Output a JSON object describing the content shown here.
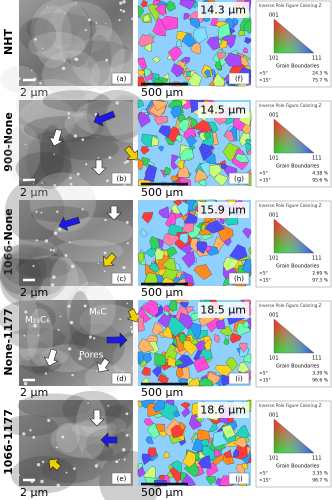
{
  "legend": {
    "title": "Inverse Pole Figure Coloring Z",
    "poles": [
      "001",
      "101",
      "111"
    ],
    "gb_title": "Grain Boundaries",
    "gb_labels": [
      ">5°",
      ">15°"
    ]
  },
  "annotations": {
    "m23c6": "M₂₃C₆",
    "m6c": "M₆C",
    "pores": "Pores"
  },
  "rows": [
    {
      "label": "NHT",
      "sem_scale": "2 μm",
      "sem_panel": "(a)",
      "grain_size": "14.3 μm",
      "ebsd_scale": "500 μm",
      "ebsd_panel": "(f)",
      "gb_values": [
        "24.3 %",
        "75.7 %"
      ]
    },
    {
      "label": "900-None",
      "sem_scale": "2 μm",
      "sem_panel": "(b)",
      "grain_size": "14.5 μm",
      "ebsd_scale": "500 μm",
      "ebsd_panel": "(g)",
      "gb_values": [
        "4.38 %",
        "95.6 %"
      ]
    },
    {
      "label": "1066-None",
      "sem_scale": "2 μm",
      "sem_panel": "(c)",
      "grain_size": "15.9 μm",
      "ebsd_scale": "500 μm",
      "ebsd_panel": "(h)",
      "gb_values": [
        "2.69 %",
        "97.3 %"
      ]
    },
    {
      "label": "None-1177",
      "sem_scale": "2 μm",
      "sem_panel": "(d)",
      "grain_size": "18.5 μm",
      "ebsd_scale": "500 μm",
      "ebsd_panel": "(i)",
      "gb_values": [
        "3.39 %",
        "96.6 %"
      ]
    },
    {
      "label": "1066-1177",
      "sem_scale": "2 μm",
      "sem_panel": "(e)",
      "grain_size": "18.6 μm",
      "ebsd_scale": "500 μm",
      "ebsd_panel": "(j)",
      "gb_values": [
        "3.35 %",
        "96.7 %"
      ]
    }
  ]
}
